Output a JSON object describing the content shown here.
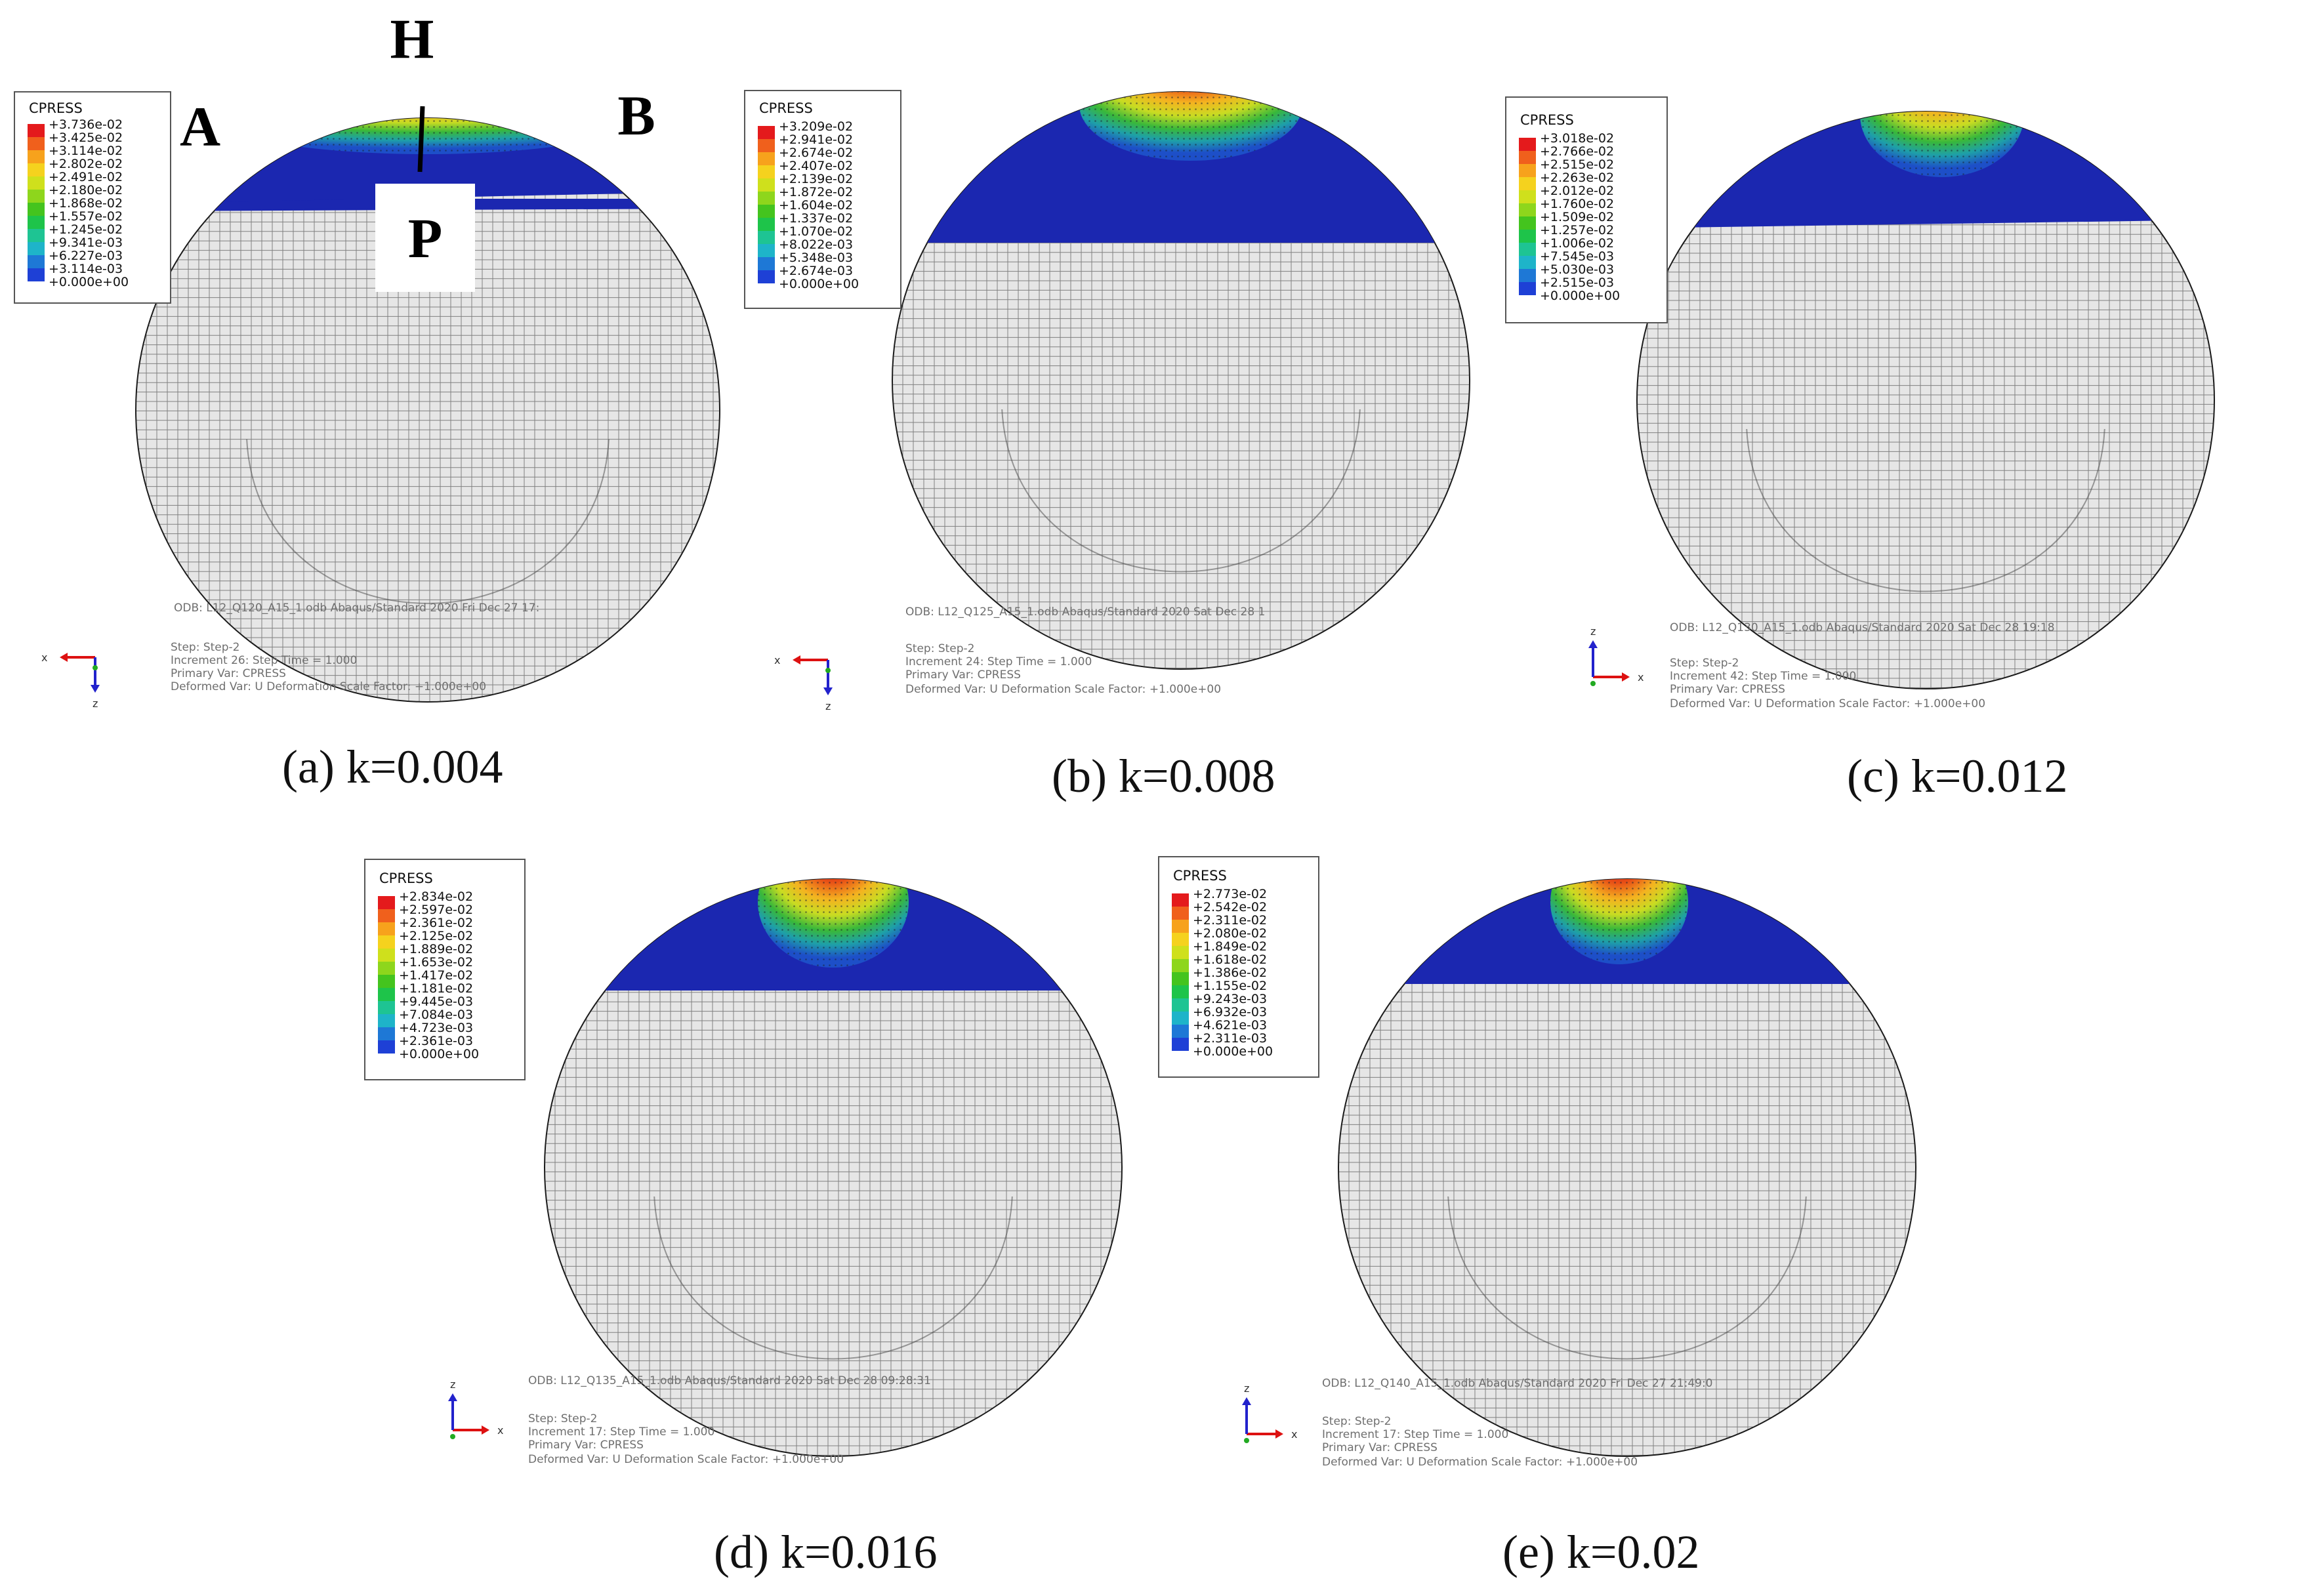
{
  "legend_colors": [
    "#e41a1c",
    "#f0601c",
    "#f7a21c",
    "#f5d21e",
    "#cfe01c",
    "#8ed61c",
    "#44c41e",
    "#1ec44a",
    "#1ec493",
    "#1eb4c9",
    "#1e78d6",
    "#1e40d6",
    "#1a1aa8"
  ],
  "panels": [
    {
      "id": "a",
      "caption": "(a) k=0.004",
      "legend": {
        "title": "CPRESS",
        "values": [
          "+3.736e-02",
          "+3.425e-02",
          "+3.114e-02",
          "+2.802e-02",
          "+2.491e-02",
          "+2.180e-02",
          "+1.868e-02",
          "+1.557e-02",
          "+1.245e-02",
          "+9.341e-03",
          "+6.227e-03",
          "+3.114e-03",
          "+0.000e+00"
        ]
      },
      "info": {
        "odb": "ODB: L12_Q120_A15_1.odb   Abaqus/Standard 2020   Fri Dec 27 17:",
        "step": "Step: Step-2",
        "increment": "Increment    26: Step Time =    1.000",
        "primary": "Primary Var: CPRESS",
        "deformed": "Deformed Var: U   Deformation Scale Factor: +1.000e+00"
      },
      "triad": [
        "x",
        "z"
      ],
      "markers": {
        "h": "H",
        "p": "P",
        "a": "A",
        "b": "B"
      }
    },
    {
      "id": "b",
      "caption": "(b) k=0.008",
      "legend": {
        "title": "CPRESS",
        "values": [
          "+3.209e-02",
          "+2.941e-02",
          "+2.674e-02",
          "+2.407e-02",
          "+2.139e-02",
          "+1.872e-02",
          "+1.604e-02",
          "+1.337e-02",
          "+1.070e-02",
          "+8.022e-03",
          "+5.348e-03",
          "+2.674e-03",
          "+0.000e+00"
        ]
      },
      "info": {
        "odb": "ODB: L12_Q125_A15_1.odb   Abaqus/Standard 2020   Sat Dec 28 1",
        "step": "Step: Step-2",
        "increment": "Increment    24: Step Time =    1.000",
        "primary": "Primary Var: CPRESS",
        "deformed": "Deformed Var: U   Deformation Scale Factor: +1.000e+00"
      },
      "triad": [
        "x",
        "z"
      ]
    },
    {
      "id": "c",
      "caption": "(c) k=0.012",
      "legend": {
        "title": "CPRESS",
        "values": [
          "+3.018e-02",
          "+2.766e-02",
          "+2.515e-02",
          "+2.263e-02",
          "+2.012e-02",
          "+1.760e-02",
          "+1.509e-02",
          "+1.257e-02",
          "+1.006e-02",
          "+7.545e-03",
          "+5.030e-03",
          "+2.515e-03",
          "+0.000e+00"
        ]
      },
      "info": {
        "odb": "ODB: L12_Q130_A15_1.odb   Abaqus/Standard 2020   Sat Dec 28 19:18",
        "step": "Step: Step-2",
        "increment": "Increment    42: Step Time =    1.000",
        "primary": "Primary Var: CPRESS",
        "deformed": "Deformed Var: U   Deformation Scale Factor: +1.000e+00"
      },
      "triad": [
        "x",
        "z"
      ]
    },
    {
      "id": "d",
      "caption": "(d) k=0.016",
      "legend": {
        "title": "CPRESS",
        "values": [
          "+2.834e-02",
          "+2.597e-02",
          "+2.361e-02",
          "+2.125e-02",
          "+1.889e-02",
          "+1.653e-02",
          "+1.417e-02",
          "+1.181e-02",
          "+9.445e-03",
          "+7.084e-03",
          "+4.723e-03",
          "+2.361e-03",
          "+0.000e+00"
        ]
      },
      "info": {
        "odb": "ODB: L12_Q135_A15_1.odb   Abaqus/Standard 2020   Sat Dec 28 09:28:31",
        "step": "Step: Step-2",
        "increment": "Increment    17: Step Time =    1.000",
        "primary": "Primary Var: CPRESS",
        "deformed": "Deformed Var: U   Deformation Scale Factor: +1.000e+00"
      },
      "triad": [
        "x",
        "z"
      ]
    },
    {
      "id": "e",
      "caption": "(e) k=0.02",
      "legend": {
        "title": "CPRESS",
        "values": [
          "+2.773e-02",
          "+2.542e-02",
          "+2.311e-02",
          "+2.080e-02",
          "+1.849e-02",
          "+1.618e-02",
          "+1.386e-02",
          "+1.155e-02",
          "+9.243e-03",
          "+6.932e-03",
          "+4.621e-03",
          "+2.311e-03",
          "+0.000e+00"
        ]
      },
      "info": {
        "odb": "ODB: L12_Q140_A15_1.odb   Abaqus/Standard 2020   Fri Dec 27 21:49:0",
        "step": "Step: Step-2",
        "increment": "Increment    17: Step Time =    1.000",
        "primary": "Primary Var: CPRESS",
        "deformed": "Deformed Var: U   Deformation Scale Factor: +1.000e+00"
      },
      "triad": [
        "x",
        "z"
      ]
    }
  ]
}
